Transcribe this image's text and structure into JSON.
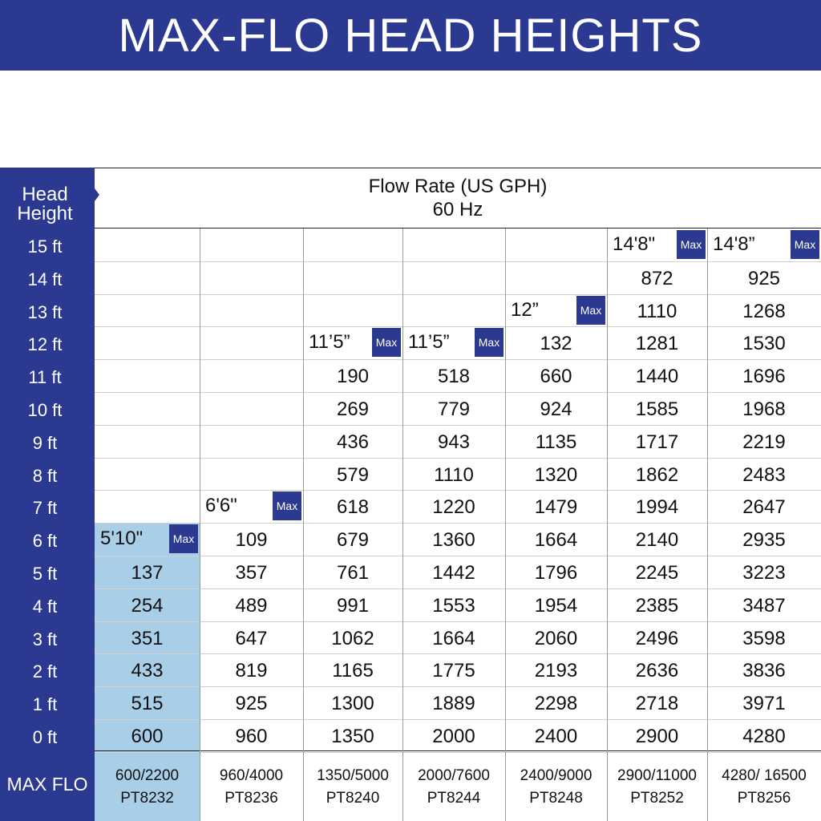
{
  "title": "MAX-FLO HEAD HEIGHTS",
  "head_height_label": "Head\nHeight",
  "flow_rate_label": "Flow Rate (US GPH)",
  "frequency_label": "60 Hz",
  "max_flo_label": "MAX FLO",
  "max_badge": "Max",
  "colors": {
    "navy": "#2b3990",
    "highlight": "#a9cfe8"
  },
  "chart_data": {
    "type": "table",
    "title": "MAX-FLO HEAD HEIGHTS",
    "row_header": "Head Height",
    "column_header": "Flow Rate (US GPH)",
    "subheader": "60 Hz",
    "head_heights": [
      "15 ft",
      "14 ft",
      "13 ft",
      "12 ft",
      "11 ft",
      "10 ft",
      "9 ft",
      "8 ft",
      "7 ft",
      "6 ft",
      "5 ft",
      "4 ft",
      "3 ft",
      "2 ft",
      "1 ft",
      "0 ft"
    ],
    "models": [
      {
        "model": "PT8232",
        "max_flo": "600/2200",
        "max_head": "5'10\"",
        "values": [
          null,
          null,
          null,
          null,
          null,
          null,
          null,
          null,
          null,
          null,
          137,
          254,
          351,
          433,
          515,
          600
        ]
      },
      {
        "model": "PT8236",
        "max_flo": "960/4000",
        "max_head": "6'6\"",
        "values": [
          null,
          null,
          null,
          null,
          null,
          null,
          null,
          null,
          null,
          109,
          357,
          489,
          647,
          819,
          925,
          960
        ]
      },
      {
        "model": "PT8240",
        "max_flo": "1350/5000",
        "max_head": "11’5”",
        "values": [
          null,
          null,
          null,
          null,
          190,
          269,
          436,
          579,
          618,
          679,
          761,
          991,
          1062,
          1165,
          1300,
          1350
        ]
      },
      {
        "model": "PT8244",
        "max_flo": "2000/7600",
        "max_head": "11’5”",
        "values": [
          null,
          null,
          null,
          null,
          518,
          779,
          943,
          1110,
          1220,
          1360,
          1442,
          1553,
          1664,
          1775,
          1889,
          2000
        ]
      },
      {
        "model": "PT8248",
        "max_flo": "2400/9000",
        "max_head": "12”",
        "values": [
          null,
          null,
          null,
          132,
          660,
          924,
          1135,
          1320,
          1479,
          1664,
          1796,
          1954,
          2060,
          2193,
          2298,
          2400
        ]
      },
      {
        "model": "PT8252",
        "max_flo": "2900/11000",
        "max_head": "14'8\"",
        "values": [
          null,
          872,
          1110,
          1281,
          1440,
          1585,
          1717,
          1862,
          1994,
          2140,
          2245,
          2385,
          2496,
          2636,
          2718,
          2900
        ]
      },
      {
        "model": "PT8256",
        "max_flo": "4280/ 16500",
        "max_head": "14'8”",
        "values": [
          null,
          925,
          1268,
          1530,
          1696,
          1968,
          2219,
          2483,
          2647,
          2935,
          3223,
          3487,
          3598,
          3836,
          3971,
          4280
        ]
      }
    ]
  }
}
